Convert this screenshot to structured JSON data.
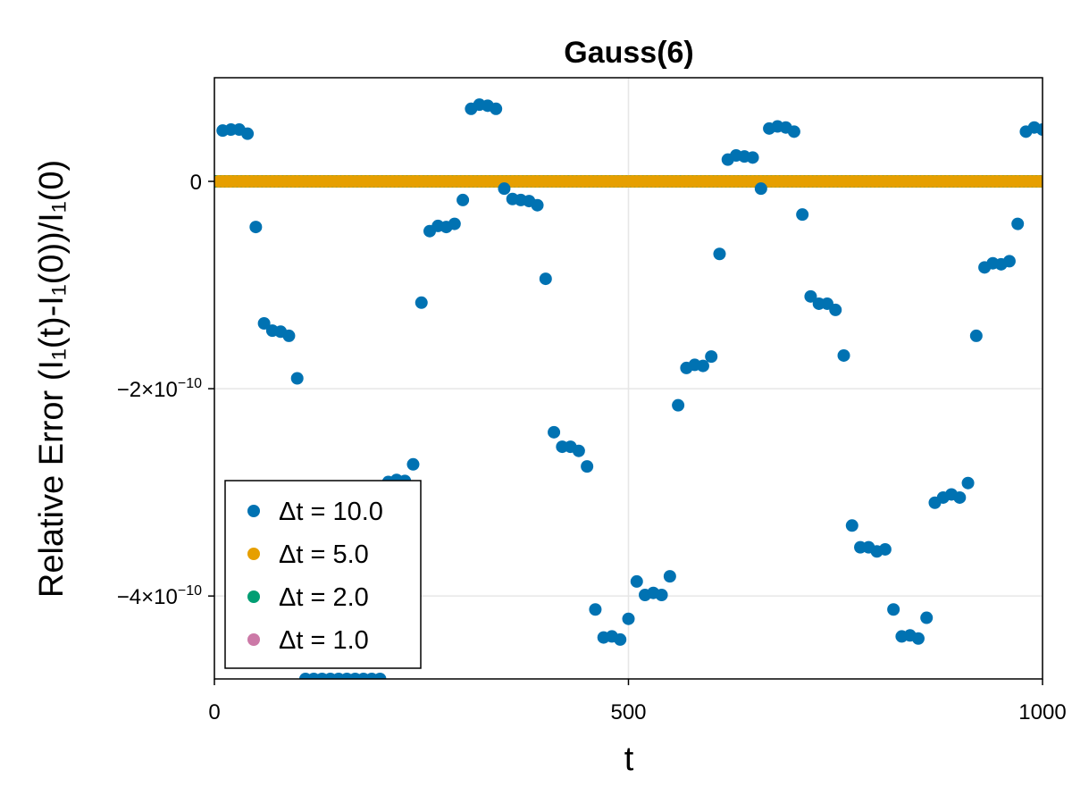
{
  "chart_data": {
    "type": "scatter",
    "title": "Gauss(6)",
    "xlabel": "t",
    "ylabel": "Relative Error (I₁(t)-I₁(0))/I₁(0)",
    "xlim": [
      0,
      1000
    ],
    "ylim": [
      -4.8e-10,
      1e-10
    ],
    "x_ticks": [
      {
        "value": 0,
        "label": "0"
      },
      {
        "value": 500,
        "label": "500"
      },
      {
        "value": 1000,
        "label": "1000"
      }
    ],
    "y_ticks": [
      {
        "value": 0,
        "base": "0",
        "exp": ""
      },
      {
        "value": -2e-10,
        "base": "−2×10",
        "exp": "−10"
      },
      {
        "value": -4e-10,
        "base": "−4×10",
        "exp": "−10"
      }
    ],
    "grid": true,
    "legend_position": "bottom-left",
    "series": [
      {
        "name": "Δt = 10.0",
        "color": "#0072b2",
        "x": [
          10,
          20,
          30,
          40,
          50,
          60,
          70,
          80,
          90,
          100,
          110,
          120,
          130,
          140,
          150,
          160,
          170,
          180,
          190,
          200,
          210,
          220,
          230,
          240,
          250,
          260,
          270,
          280,
          290,
          300,
          310,
          320,
          330,
          340,
          350,
          360,
          370,
          380,
          390,
          400,
          410,
          420,
          430,
          440,
          450,
          460,
          470,
          480,
          490,
          500,
          510,
          520,
          530,
          540,
          550,
          560,
          570,
          580,
          590,
          600,
          610,
          620,
          630,
          640,
          650,
          660,
          670,
          680,
          690,
          700,
          710,
          720,
          730,
          740,
          750,
          760,
          770,
          780,
          790,
          800,
          810,
          820,
          830,
          840,
          850,
          860,
          870,
          880,
          890,
          900,
          910,
          920,
          930,
          940,
          950,
          960,
          970,
          980,
          990,
          1000
        ],
        "y": [
          4.9e-11,
          5e-11,
          5e-11,
          4.6e-11,
          -4.4e-11,
          -1.37e-10,
          -1.44e-10,
          -1.45e-10,
          -1.49e-10,
          -1.9e-10,
          -4.8e-10,
          -4.8e-10,
          -4.8e-10,
          -4.8e-10,
          -4.8e-10,
          -4.8e-10,
          -4.8e-10,
          -4.8e-10,
          -4.8e-10,
          -4.8e-10,
          -2.9e-10,
          -2.88e-10,
          -2.89e-10,
          -2.73e-10,
          -1.17e-10,
          -4.8e-11,
          -4.3e-11,
          -4.4e-11,
          -4.1e-11,
          -1.8e-11,
          7e-11,
          7.4e-11,
          7.3e-11,
          7e-11,
          -7e-12,
          -1.7e-11,
          -1.8e-11,
          -1.9e-11,
          -2.3e-11,
          -9.4e-11,
          -2.42e-10,
          -2.56e-10,
          -2.56e-10,
          -2.6e-10,
          -2.75e-10,
          -4.13e-10,
          -4.4e-10,
          -4.39e-10,
          -4.42e-10,
          -4.22e-10,
          -3.86e-10,
          -3.99e-10,
          -3.97e-10,
          -3.99e-10,
          -3.81e-10,
          -2.16e-10,
          -1.8e-10,
          -1.77e-10,
          -1.78e-10,
          -1.69e-10,
          -7e-11,
          2.1e-11,
          2.5e-11,
          2.4e-11,
          2.3e-11,
          -7e-12,
          5.1e-11,
          5.3e-11,
          5.2e-11,
          4.8e-11,
          -3.2e-11,
          -1.11e-10,
          -1.18e-10,
          -1.18e-10,
          -1.24e-10,
          -1.68e-10,
          -3.32e-10,
          -3.53e-10,
          -3.53e-10,
          -3.57e-10,
          -3.55e-10,
          -4.13e-10,
          -4.39e-10,
          -4.38e-10,
          -4.41e-10,
          -4.21e-10,
          -3.1e-10,
          -3.05e-10,
          -3.02e-10,
          -3.05e-10,
          -2.91e-10,
          -1.49e-10,
          -8.3e-11,
          -7.9e-11,
          -8e-11,
          -7.7e-11,
          -4.1e-11,
          4.8e-11,
          5.2e-11,
          5e-11
        ]
      },
      {
        "name": "Δt = 5.0",
        "color": "#e69f00",
        "x": [
          5,
          10,
          15,
          20,
          25,
          30,
          35,
          40,
          45,
          50,
          55,
          60,
          65,
          70,
          75,
          80,
          85,
          90,
          95,
          100,
          105,
          110,
          115,
          120,
          125,
          130,
          135,
          140,
          145,
          150,
          155,
          160,
          165,
          170,
          175,
          180,
          185,
          190,
          195,
          200,
          205,
          210,
          215,
          220,
          225,
          230,
          235,
          240,
          245,
          250,
          255,
          260,
          265,
          270,
          275,
          280,
          285,
          290,
          295,
          300,
          305,
          310,
          315,
          320,
          325,
          330,
          335,
          340,
          345,
          350,
          355,
          360,
          365,
          370,
          375,
          380,
          385,
          390,
          395,
          400,
          405,
          410,
          415,
          420,
          425,
          430,
          435,
          440,
          445,
          450,
          455,
          460,
          465,
          470,
          475,
          480,
          485,
          490,
          495,
          500,
          505,
          510,
          515,
          520,
          525,
          530,
          535,
          540,
          545,
          550,
          555,
          560,
          565,
          570,
          575,
          580,
          585,
          590,
          595,
          600,
          605,
          610,
          615,
          620,
          625,
          630,
          635,
          640,
          645,
          650,
          655,
          660,
          665,
          670,
          675,
          680,
          685,
          690,
          695,
          700,
          705,
          710,
          715,
          720,
          725,
          730,
          735,
          740,
          745,
          750,
          755,
          760,
          765,
          770,
          775,
          780,
          785,
          790,
          795,
          800,
          805,
          810,
          815,
          820,
          825,
          830,
          835,
          840,
          845,
          850,
          855,
          860,
          865,
          870,
          875,
          880,
          885,
          890,
          895,
          900,
          905,
          910,
          915,
          920,
          925,
          930,
          935,
          940,
          945,
          950,
          955,
          960,
          965,
          970,
          975,
          980,
          985,
          990,
          995,
          1000
        ],
        "y_constant": 0
      },
      {
        "name": "Δt = 2.0",
        "color": "#009e73",
        "x_step": 2,
        "y_constant": 0
      },
      {
        "name": "Δt = 1.0",
        "color": "#cc79a7",
        "x_step": 1,
        "y_constant": 0
      }
    ]
  }
}
